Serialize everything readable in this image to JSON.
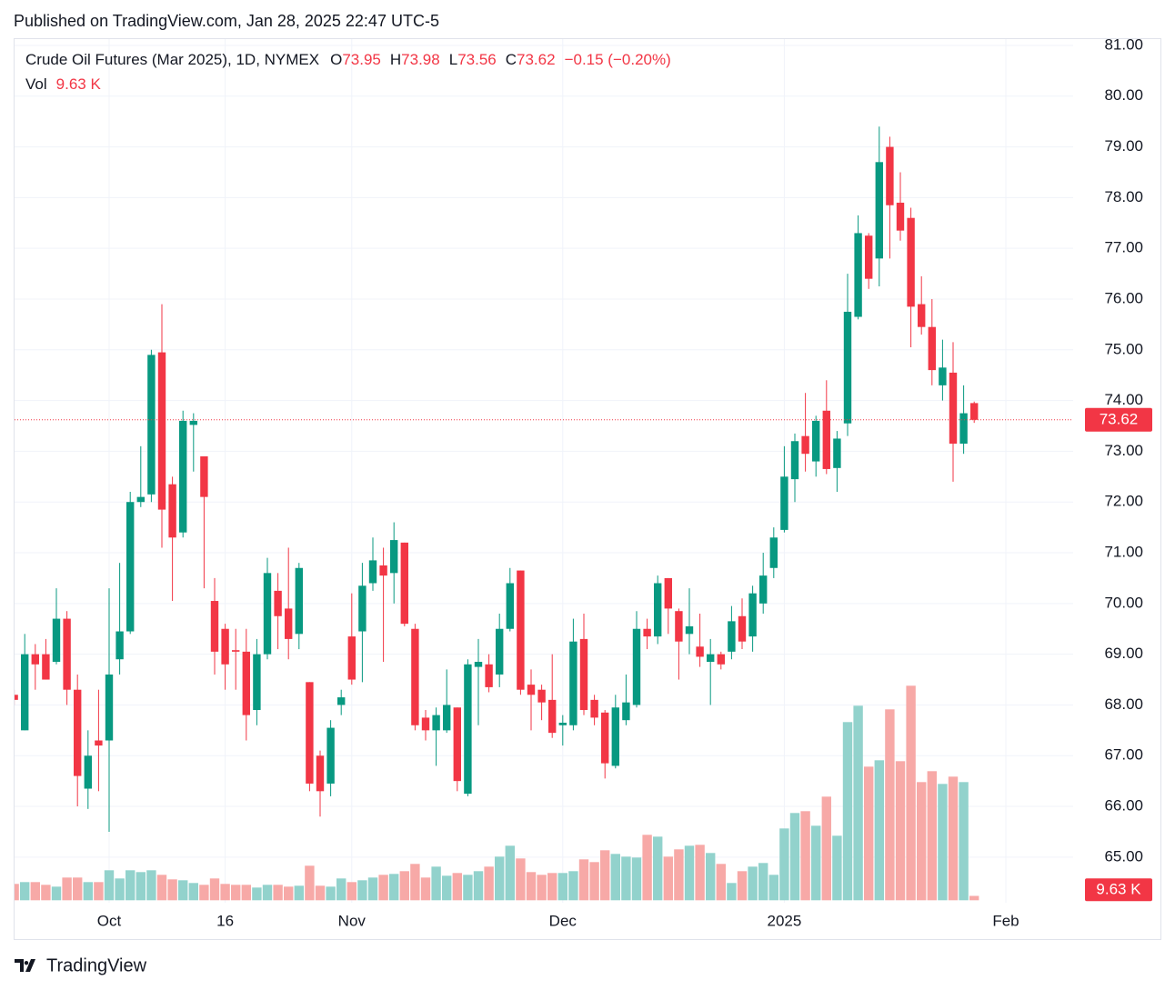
{
  "published": "Published on TradingView.com, Jan 28, 2025 22:47 UTC-5",
  "brand": "TradingView",
  "chart_data": {
    "type": "candlestick",
    "title": "Crude Oil Futures (Mar 2025), 1D, NYMEX",
    "ohlc_letters": [
      "O",
      "H",
      "L",
      "C"
    ],
    "change": "−0.15 (−0.20%)",
    "up_color": "#089981",
    "down_color": "#f23645",
    "volume_up_color": "#92d2cc",
    "volume_down_color": "#f7a9a7",
    "grid": true,
    "categories": [
      null,
      null,
      null,
      null,
      null,
      null,
      null,
      null,
      null,
      "Oct",
      null,
      null,
      null,
      null,
      null,
      null,
      null,
      null,
      null,
      null,
      "16",
      null,
      null,
      null,
      null,
      null,
      null,
      null,
      null,
      null,
      null,
      null,
      "Nov",
      null,
      null,
      null,
      null,
      null,
      null,
      null,
      null,
      null,
      null,
      null,
      null,
      null,
      null,
      null,
      null,
      null,
      null,
      null,
      "Dec",
      null,
      null,
      null,
      null,
      null,
      null,
      null,
      null,
      null,
      null,
      null,
      null,
      null,
      null,
      null,
      null,
      null,
      null,
      null,
      null,
      "2025",
      null,
      null,
      null,
      null,
      null,
      null,
      null,
      null,
      null,
      null,
      null,
      null,
      null,
      null,
      null,
      null,
      null,
      null,
      null,
      null,
      "Feb"
    ],
    "open": [
      68.2,
      67.5,
      69.0,
      69.0,
      68.85,
      69.7,
      68.3,
      66.35,
      67.3,
      67.3,
      68.9,
      69.45,
      72.0,
      72.15,
      74.95,
      72.35,
      71.4,
      73.52,
      72.9,
      70.05,
      69.5,
      69.08,
      69.05,
      67.9,
      69.0,
      70.25,
      69.9,
      69.4,
      68.45,
      67.0,
      66.45,
      68.0,
      69.35,
      69.45,
      70.4,
      70.75,
      70.6,
      71.2,
      69.5,
      67.75,
      67.5,
      67.5,
      67.95,
      66.25,
      68.75,
      68.8,
      68.6,
      69.5,
      70.65,
      68.4,
      68.3,
      68.1,
      67.6,
      67.6,
      69.3,
      68.1,
      67.85,
      66.8,
      67.7,
      68.0,
      69.5,
      69.35,
      70.5,
      69.85,
      69.4,
      69.15,
      68.85,
      69.0,
      69.05,
      69.75,
      69.35,
      70.0,
      70.7,
      71.45,
      72.45,
      73.3,
      72.8,
      73.8,
      72.67,
      73.55,
      75.65,
      77.25,
      76.8,
      79.0,
      77.9,
      77.6,
      75.9,
      75.45,
      74.3,
      74.55,
      73.15,
      73.95,
      null,
      null,
      null
    ],
    "high": [
      68.3,
      69.4,
      69.2,
      69.3,
      70.3,
      69.85,
      68.6,
      67.5,
      68.3,
      70.3,
      70.8,
      72.2,
      73.1,
      75.0,
      75.9,
      72.5,
      73.8,
      73.75,
      72.9,
      70.5,
      69.6,
      69.5,
      69.5,
      69.3,
      70.9,
      70.6,
      71.1,
      70.8,
      68.45,
      67.1,
      67.7,
      68.3,
      70.2,
      70.8,
      71.3,
      71.1,
      71.6,
      71.2,
      69.6,
      67.9,
      67.95,
      68.7,
      67.95,
      68.9,
      69.3,
      69.0,
      69.8,
      70.7,
      70.65,
      68.7,
      68.4,
      69.0,
      67.8,
      69.7,
      69.8,
      68.2,
      67.9,
      68.2,
      68.6,
      69.85,
      69.7,
      70.55,
      70.5,
      69.9,
      70.3,
      69.8,
      69.3,
      69.05,
      69.95,
      70.1,
      70.35,
      71.0,
      71.5,
      73.1,
      73.35,
      74.15,
      73.7,
      74.4,
      73.4,
      76.5,
      77.65,
      77.3,
      79.4,
      79.2,
      78.5,
      77.8,
      76.45,
      76.0,
      75.2,
      75.15,
      74.3,
      73.98,
      null,
      null,
      null
    ],
    "low": [
      68.0,
      67.5,
      68.3,
      68.5,
      68.8,
      68.0,
      66.0,
      65.95,
      66.3,
      65.5,
      68.6,
      69.4,
      71.9,
      72.0,
      71.1,
      70.05,
      71.3,
      72.6,
      70.3,
      68.6,
      68.3,
      68.3,
      67.3,
      67.6,
      68.9,
      69.1,
      68.9,
      69.1,
      66.3,
      65.8,
      66.2,
      67.8,
      68.4,
      68.45,
      70.25,
      68.85,
      70.0,
      69.55,
      67.5,
      67.3,
      66.8,
      67.45,
      66.3,
      66.2,
      67.6,
      68.25,
      68.35,
      69.45,
      68.2,
      67.5,
      67.7,
      67.35,
      67.2,
      67.5,
      67.8,
      67.6,
      66.55,
      66.75,
      67.6,
      67.95,
      69.1,
      69.2,
      69.4,
      68.5,
      69.0,
      68.75,
      68.0,
      68.7,
      68.9,
      69.1,
      69.05,
      69.8,
      70.5,
      71.4,
      72.0,
      72.6,
      72.5,
      72.55,
      72.2,
      73.3,
      75.6,
      76.2,
      76.25,
      76.8,
      77.15,
      75.05,
      75.3,
      74.3,
      74.0,
      72.4,
      72.95,
      73.56,
      null,
      null,
      null
    ],
    "close": [
      68.1,
      69.0,
      68.8,
      68.5,
      69.7,
      68.3,
      66.6,
      67.0,
      67.2,
      68.6,
      69.45,
      72.0,
      72.1,
      74.9,
      71.85,
      71.3,
      73.6,
      73.6,
      72.1,
      69.05,
      68.8,
      69.05,
      67.8,
      69.0,
      70.6,
      69.75,
      69.3,
      70.7,
      66.45,
      66.3,
      67.55,
      68.15,
      68.5,
      70.35,
      70.85,
      70.55,
      71.25,
      69.6,
      67.6,
      67.5,
      67.8,
      68.0,
      66.5,
      68.8,
      68.85,
      68.35,
      69.5,
      70.4,
      68.3,
      68.2,
      68.05,
      67.45,
      67.65,
      69.25,
      67.9,
      67.75,
      66.85,
      67.95,
      68.05,
      69.5,
      69.35,
      70.4,
      69.9,
      69.25,
      69.55,
      68.95,
      69.0,
      68.8,
      69.65,
      69.25,
      70.2,
      70.55,
      71.3,
      72.5,
      73.2,
      72.95,
      73.6,
      72.65,
      73.25,
      75.75,
      77.3,
      76.4,
      78.7,
      77.85,
      77.35,
      75.85,
      75.45,
      74.6,
      74.65,
      73.15,
      73.75,
      73.62,
      null,
      null,
      null
    ],
    "volume": {
      "name": "Vol",
      "values": [
        36,
        40,
        40,
        34,
        30,
        50,
        50,
        40,
        40,
        66,
        48,
        66,
        62,
        66,
        56,
        46,
        44,
        38,
        34,
        48,
        36,
        34,
        34,
        28,
        34,
        34,
        30,
        32,
        76,
        32,
        30,
        48,
        40,
        44,
        50,
        56,
        58,
        64,
        80,
        50,
        74,
        54,
        60,
        56,
        64,
        74,
        96,
        120,
        92,
        62,
        56,
        60,
        60,
        64,
        90,
        84,
        110,
        102,
        96,
        94,
        144,
        140,
        96,
        112,
        120,
        122,
        104,
        80,
        38,
        64,
        74,
        82,
        56,
        158,
        192,
        196,
        164,
        228,
        142,
        392,
        428,
        294,
        308,
        420,
        306,
        472,
        260,
        284,
        256,
        272,
        260,
        9.63,
        null,
        null,
        null
      ],
      "last_label": "9.63 K"
    },
    "ylim": [
      64.15,
      81.75
    ],
    "yticks": [
      {
        "value": 65,
        "label": "65.00"
      },
      {
        "value": 66,
        "label": "66.00"
      },
      {
        "value": 67,
        "label": "67.00"
      },
      {
        "value": 68,
        "label": "68.00"
      },
      {
        "value": 69,
        "label": "69.00"
      },
      {
        "value": 70,
        "label": "70.00"
      },
      {
        "value": 71,
        "label": "71.00"
      },
      {
        "value": 72,
        "label": "72.00"
      },
      {
        "value": 73,
        "label": "73.00"
      },
      {
        "value": 74,
        "label": "74.00"
      },
      {
        "value": 75,
        "label": "75.00"
      },
      {
        "value": 76,
        "label": "76.00"
      },
      {
        "value": 77,
        "label": "77.00"
      },
      {
        "value": 78,
        "label": "78.00"
      },
      {
        "value": 79,
        "label": "79.00"
      },
      {
        "value": 80,
        "label": "80.00"
      },
      {
        "value": 81,
        "label": "81.00"
      }
    ]
  }
}
